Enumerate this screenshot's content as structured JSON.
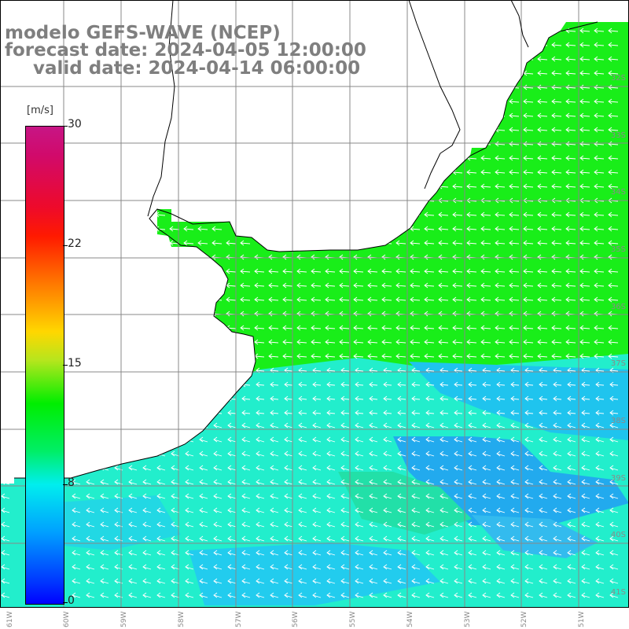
{
  "header": {
    "line1": "modelo GEFS-WAVE (NCEP)",
    "line2": "forecast date: 2024-04-05 12:00:00",
    "line3": "valid date: 2024-04-14 06:00:00"
  },
  "colorbar": {
    "units": "[m/s]",
    "ticks": [
      "30",
      "22",
      "15",
      "8",
      "0"
    ],
    "colors": [
      "#c71585",
      "#ff1a00",
      "#ff6600",
      "#ffd700",
      "#00ee00",
      "#00eeee",
      "#00a0ff",
      "#0000ff"
    ]
  },
  "lat_labels": [
    "32S",
    "33S",
    "34S",
    "35S",
    "36S",
    "37S",
    "38S",
    "39S",
    "40S",
    "41S"
  ],
  "lon_labels": [
    "61W",
    "60W",
    "59W",
    "58W",
    "57W",
    "56W",
    "55W",
    "54W",
    "53W",
    "52W",
    "51W"
  ],
  "map_colors": {
    "land": "#ffffff",
    "grid": "#888888",
    "coast": "#000000",
    "arrows": "#ffffff",
    "strong_wind": "#19ee19",
    "moderate_wind": "#22eecc",
    "weak_wind": "#22aaee"
  }
}
